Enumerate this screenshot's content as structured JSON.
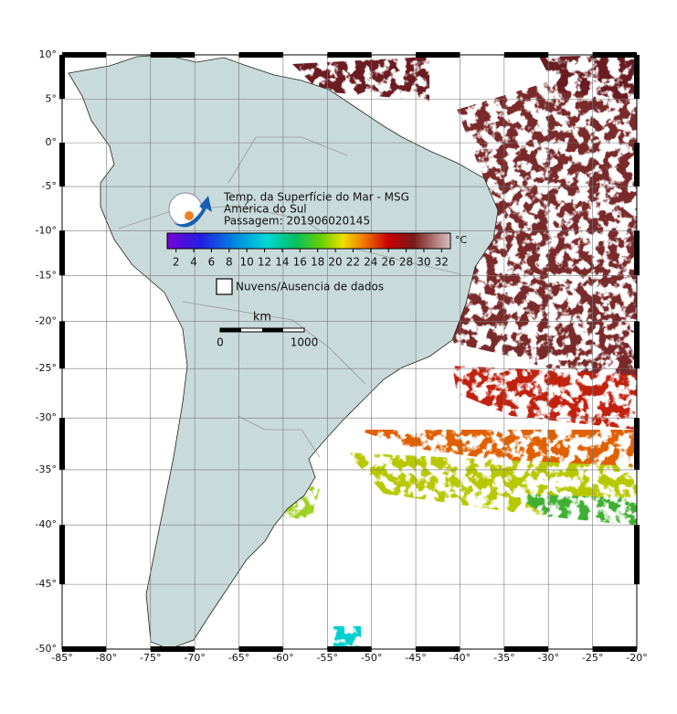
{
  "map": {
    "title_lines": [
      "Temp. da Superfície do Mar - MSG",
      "América do Sul",
      "Passagem: 201906020145"
    ],
    "colorbar": {
      "unit": "°C",
      "range": [
        1,
        33
      ],
      "ticks": [
        2,
        4,
        6,
        8,
        10,
        12,
        14,
        16,
        18,
        20,
        22,
        24,
        26,
        28,
        30,
        32
      ]
    },
    "legend": "Nuvens/Ausencia de dados",
    "scale": {
      "unit": "km",
      "start": "0",
      "end": "1000"
    },
    "lonlim": [
      -85,
      -20
    ],
    "latlim": [
      10,
      -50
    ],
    "lon_ticks": [
      {
        "value": -85,
        "label": "-85°"
      },
      {
        "value": -80,
        "label": "-80°"
      },
      {
        "value": -75,
        "label": "-75°"
      },
      {
        "value": -70,
        "label": "-70°"
      },
      {
        "value": -65,
        "label": "-65°"
      },
      {
        "value": -60,
        "label": "-60°"
      },
      {
        "value": -55,
        "label": "-55°"
      },
      {
        "value": -50,
        "label": "-50°"
      },
      {
        "value": -45,
        "label": "-45°"
      },
      {
        "value": -40,
        "label": "-40°"
      },
      {
        "value": -35,
        "label": "-35°"
      },
      {
        "value": -30,
        "label": "-30°"
      },
      {
        "value": -25,
        "label": "-25°"
      },
      {
        "value": -20,
        "label": "-20°"
      }
    ],
    "lat_ticks": [
      {
        "value": 10,
        "label": "10°"
      },
      {
        "value": 5,
        "label": "5°"
      },
      {
        "value": 0,
        "label": "0°"
      },
      {
        "value": -5,
        "label": "-5°"
      },
      {
        "value": -10,
        "label": "-10°"
      },
      {
        "value": -15,
        "label": "-15°"
      },
      {
        "value": -20,
        "label": "-20°"
      },
      {
        "value": -25,
        "label": "-25°"
      },
      {
        "value": -30,
        "label": "-30°"
      },
      {
        "value": -35,
        "label": "-35°"
      },
      {
        "value": -40,
        "label": "-40°"
      },
      {
        "value": -45,
        "label": "-45°"
      },
      {
        "value": -50,
        "label": "-50°"
      }
    ]
  }
}
